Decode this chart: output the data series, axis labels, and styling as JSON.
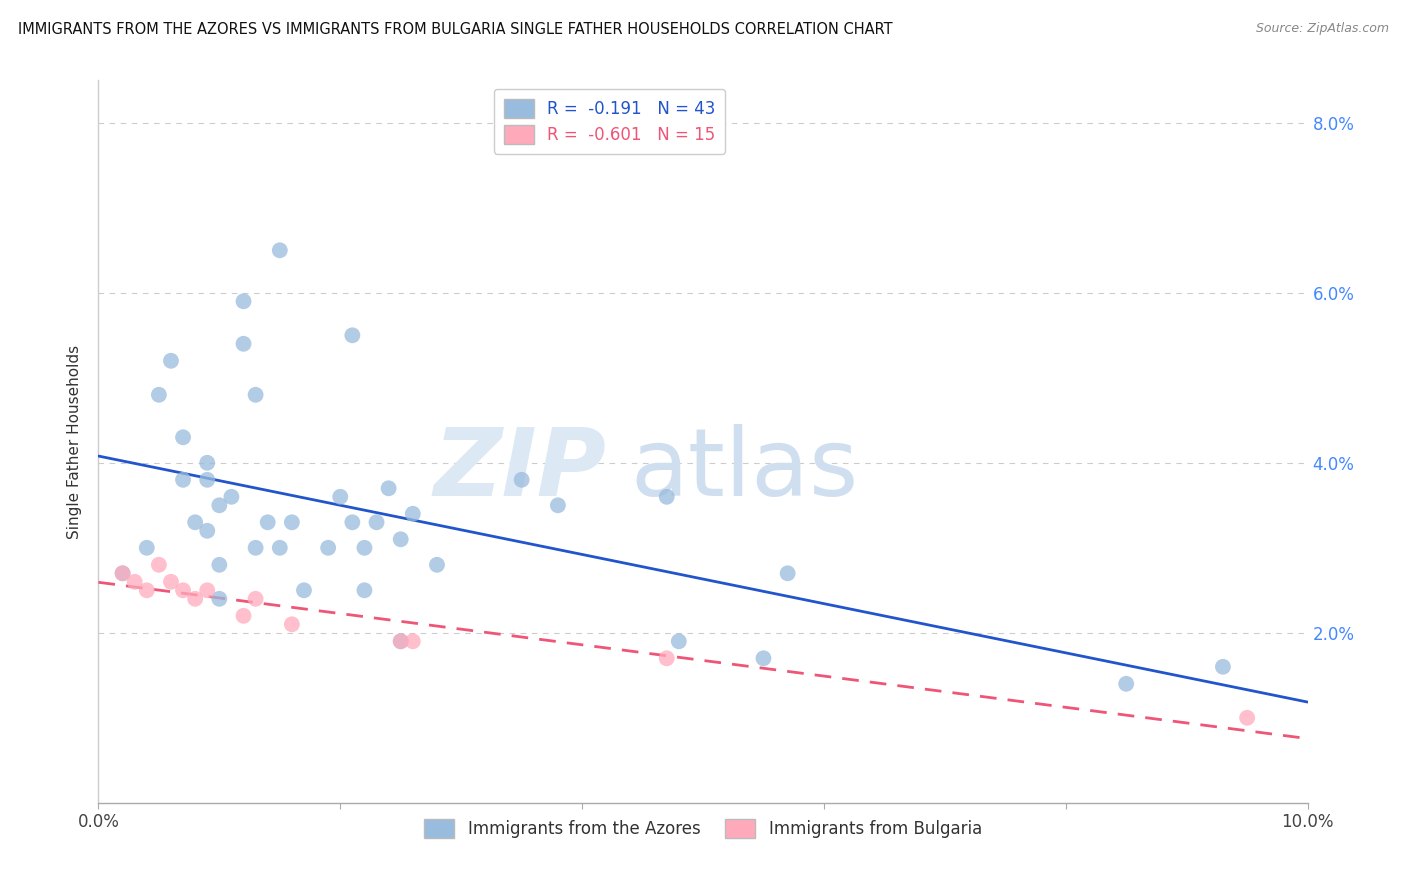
{
  "title": "IMMIGRANTS FROM THE AZORES VS IMMIGRANTS FROM BULGARIA SINGLE FATHER HOUSEHOLDS CORRELATION CHART",
  "source": "Source: ZipAtlas.com",
  "ylabel": "Single Father Households",
  "xlim": [
    0.0,
    0.1
  ],
  "ylim": [
    0.0,
    0.085
  ],
  "xticks": [
    0.0,
    0.02,
    0.04,
    0.06,
    0.08,
    0.1
  ],
  "yticks": [
    0.0,
    0.02,
    0.04,
    0.06,
    0.08
  ],
  "ytick_labels_right": [
    "",
    "2.0%",
    "4.0%",
    "6.0%",
    "8.0%"
  ],
  "xtick_labels": [
    "0.0%",
    "",
    "",
    "",
    "",
    "10.0%"
  ],
  "blue_scatter_color": "#99bbdd",
  "pink_scatter_color": "#ffaabb",
  "blue_line_color": "#2255cc",
  "pink_line_color": "#ee5577",
  "legend_blue_R": "-0.191",
  "legend_blue_N": "43",
  "legend_pink_R": "-0.601",
  "legend_pink_N": "15",
  "legend_label_blue": "Immigrants from the Azores",
  "legend_label_pink": "Immigrants from Bulgaria",
  "watermark_zip": "ZIP",
  "watermark_atlas": "atlas",
  "azores_x": [
    0.002,
    0.004,
    0.005,
    0.006,
    0.007,
    0.007,
    0.008,
    0.009,
    0.009,
    0.009,
    0.01,
    0.01,
    0.01,
    0.011,
    0.012,
    0.012,
    0.013,
    0.013,
    0.014,
    0.015,
    0.015,
    0.016,
    0.017,
    0.019,
    0.02,
    0.021,
    0.021,
    0.022,
    0.022,
    0.023,
    0.024,
    0.025,
    0.025,
    0.026,
    0.028,
    0.035,
    0.038,
    0.047,
    0.048,
    0.055,
    0.057,
    0.085,
    0.093
  ],
  "azores_y": [
    0.027,
    0.03,
    0.048,
    0.052,
    0.043,
    0.038,
    0.033,
    0.04,
    0.038,
    0.032,
    0.035,
    0.028,
    0.024,
    0.036,
    0.059,
    0.054,
    0.048,
    0.03,
    0.033,
    0.065,
    0.03,
    0.033,
    0.025,
    0.03,
    0.036,
    0.055,
    0.033,
    0.03,
    0.025,
    0.033,
    0.037,
    0.031,
    0.019,
    0.034,
    0.028,
    0.038,
    0.035,
    0.036,
    0.019,
    0.017,
    0.027,
    0.014,
    0.016
  ],
  "bulgaria_x": [
    0.002,
    0.003,
    0.004,
    0.005,
    0.006,
    0.007,
    0.008,
    0.009,
    0.012,
    0.013,
    0.016,
    0.025,
    0.026,
    0.047,
    0.095
  ],
  "bulgaria_y": [
    0.027,
    0.026,
    0.025,
    0.028,
    0.026,
    0.025,
    0.024,
    0.025,
    0.022,
    0.024,
    0.021,
    0.019,
    0.019,
    0.017,
    0.01
  ]
}
